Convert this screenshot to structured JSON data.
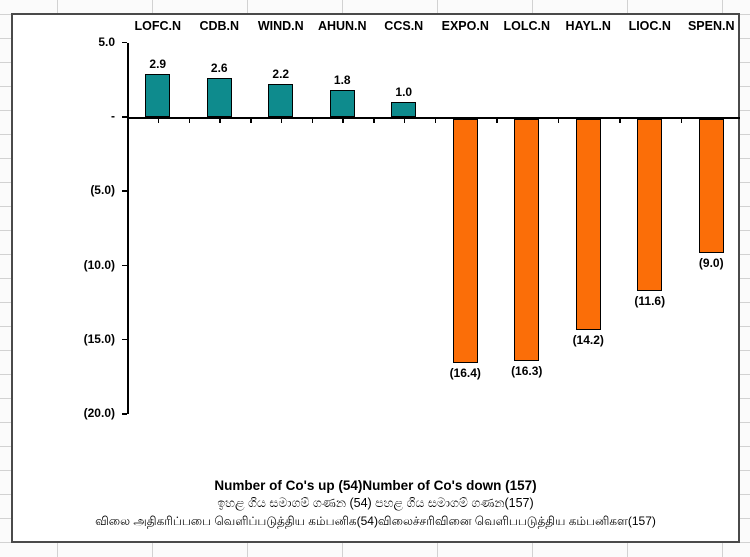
{
  "chart_data": {
    "type": "bar",
    "categories": [
      "LOFC.N",
      "CDB.N",
      "WIND.N",
      "AHUN.N",
      "CCS.N",
      "EXPO.N",
      "LOLC.N",
      "HAYL.N",
      "LIOC.N",
      "SPEN.N"
    ],
    "values": [
      2.9,
      2.6,
      2.2,
      1.8,
      1.0,
      -16.4,
      -16.3,
      -14.2,
      -11.6,
      -9.0
    ],
    "value_labels": [
      "2.9",
      "2.6",
      "2.2",
      "1.8",
      "1.0",
      "(16.4)",
      "(16.3)",
      "(14.2)",
      "(11.6)",
      "(9.0)"
    ],
    "y_ticks": [
      {
        "label": "5.0",
        "value": 5
      },
      {
        "label": "-",
        "value": 0
      },
      {
        "label": "(5.0)",
        "value": -5
      },
      {
        "label": "(10.0)",
        "value": -10
      },
      {
        "label": "(15.0)",
        "value": -15
      },
      {
        "label": "(20.0)",
        "value": -20
      }
    ],
    "ylim": [
      -20,
      5
    ],
    "xlabel": "",
    "ylabel": "",
    "title": "",
    "grid": false,
    "legend_position": "none",
    "colors": {
      "positive": "#0e8b8d",
      "negative": "#fb6e08",
      "bar_border": "#000000",
      "axis": "#000000",
      "frame_border": "#4a4a4a"
    }
  },
  "footer": {
    "line1": "Number of Co's up (54)Number of Co's down  (157)",
    "line2_sinhala": "ඉහළ ගිය සමාගම් ගණන (54) පහළ ගිය සමාගම් ගණන(157)",
    "line3_tamil": "விலை அதிகரிப்பபை வெளிப்படுத்திய கம்பனிக(54)விலைச்சரிவினை வெளிபபடுத்திய கம்பனிகள(157)"
  }
}
